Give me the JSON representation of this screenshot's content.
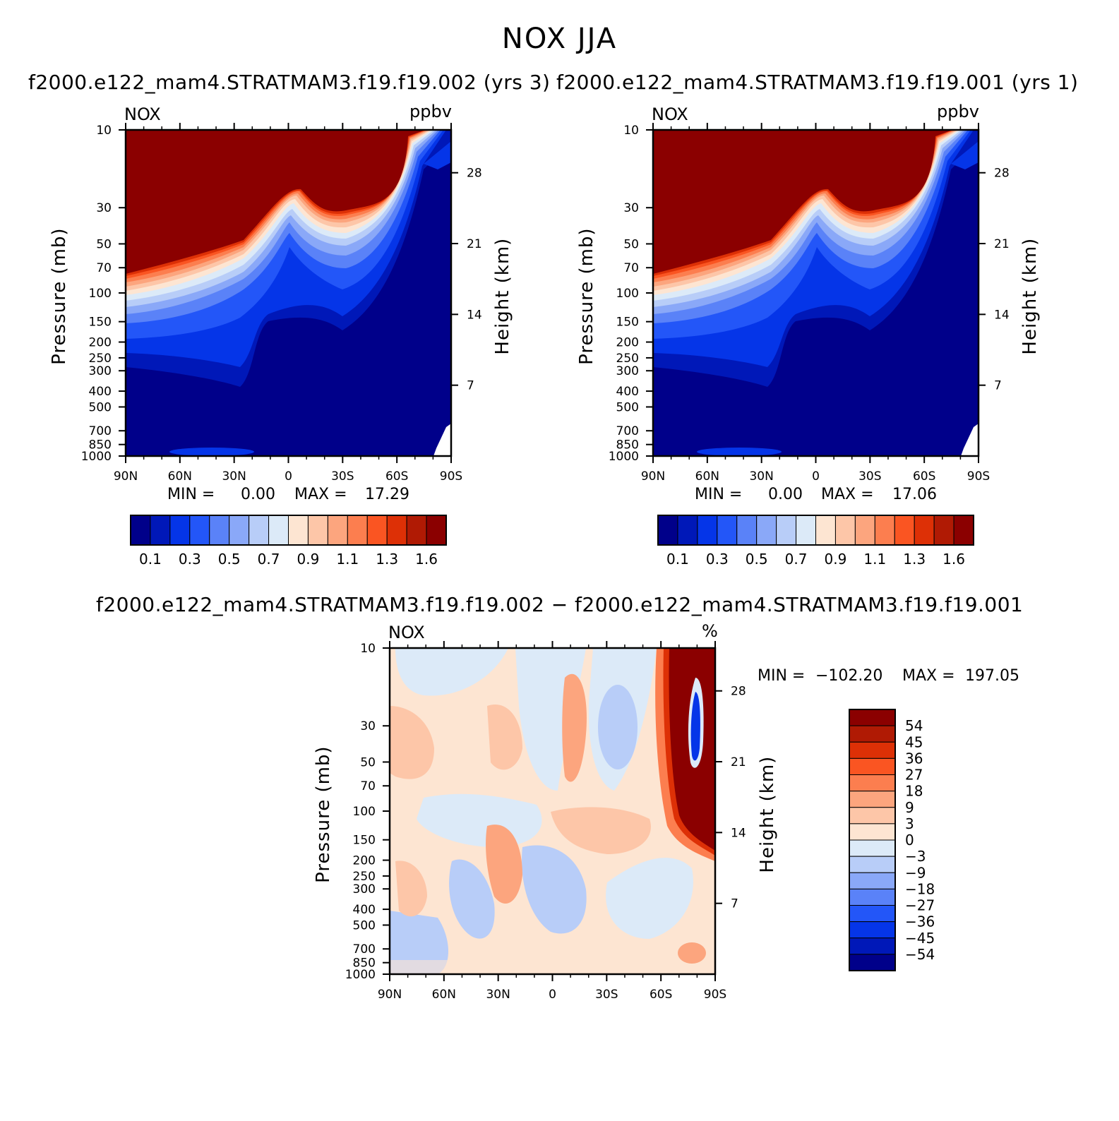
{
  "title": "NOX JJA",
  "chart_data": [
    {
      "type": "contour",
      "id": "left",
      "title": "f2000.e122_mam4.STRATMAM3.f19.f19.002 (yrs 3)",
      "variable": "NOX",
      "units": "ppbv",
      "xlabel": "",
      "ylabel": "Pressure (mb)",
      "ylabel_right": "Height (km)",
      "x_ticks": [
        "90N",
        "60N",
        "30N",
        "0",
        "30S",
        "60S",
        "90S"
      ],
      "xlim": [
        90,
        -90
      ],
      "y_ticks": [
        10,
        30,
        50,
        70,
        100,
        150,
        200,
        250,
        300,
        400,
        500,
        700,
        850,
        1000
      ],
      "ylim": [
        1000,
        10
      ],
      "y_right_ticks": [
        28,
        21,
        14,
        7
      ],
      "min_label": "MIN =",
      "min_value": "0.00",
      "max_label": "MAX =",
      "max_value": "17.29",
      "colorbar": {
        "orientation": "horizontal",
        "labels": [
          "0.1",
          "0.3",
          "0.5",
          "0.7",
          "0.9",
          "1.1",
          "1.3",
          "1.6"
        ],
        "colors": [
          "#00008a",
          "#0018b8",
          "#0535e8",
          "#2356f8",
          "#5a82f8",
          "#8aa8f8",
          "#b8cdf8",
          "#dceaf8",
          "#fde5d2",
          "#fdc6a8",
          "#fca57e",
          "#fc7e4f",
          "#fa5522",
          "#dd3006",
          "#b01a04",
          "#8b0000"
        ]
      }
    },
    {
      "type": "contour",
      "id": "right",
      "title": "f2000.e122_mam4.STRATMAM3.f19.f19.001 (yrs 1)",
      "variable": "NOX",
      "units": "ppbv",
      "xlabel": "",
      "ylabel": "Pressure (mb)",
      "ylabel_right": "Height (km)",
      "x_ticks": [
        "90N",
        "60N",
        "30N",
        "0",
        "30S",
        "60S",
        "90S"
      ],
      "xlim": [
        90,
        -90
      ],
      "y_ticks": [
        10,
        30,
        50,
        70,
        100,
        150,
        200,
        250,
        300,
        400,
        500,
        700,
        850,
        1000
      ],
      "ylim": [
        1000,
        10
      ],
      "y_right_ticks": [
        28,
        21,
        14,
        7
      ],
      "min_label": "MIN =",
      "min_value": "0.00",
      "max_label": "MAX =",
      "max_value": "17.06",
      "colorbar": {
        "orientation": "horizontal",
        "labels": [
          "0.1",
          "0.3",
          "0.5",
          "0.7",
          "0.9",
          "1.1",
          "1.3",
          "1.6"
        ],
        "colors": [
          "#00008a",
          "#0018b8",
          "#0535e8",
          "#2356f8",
          "#5a82f8",
          "#8aa8f8",
          "#b8cdf8",
          "#dceaf8",
          "#fde5d2",
          "#fdc6a8",
          "#fca57e",
          "#fc7e4f",
          "#fa5522",
          "#dd3006",
          "#b01a04",
          "#8b0000"
        ]
      }
    },
    {
      "type": "contour",
      "id": "diff",
      "title": "f2000.e122_mam4.STRATMAM3.f19.f19.002 − f2000.e122_mam4.STRATMAM3.f19.f19.001",
      "variable": "NOX",
      "units": "%",
      "xlabel": "",
      "ylabel": "Pressure (mb)",
      "ylabel_right": "Height (km)",
      "x_ticks": [
        "90N",
        "60N",
        "30N",
        "0",
        "30S",
        "60S",
        "90S"
      ],
      "xlim": [
        90,
        -90
      ],
      "y_ticks": [
        10,
        30,
        50,
        70,
        100,
        150,
        200,
        250,
        300,
        400,
        500,
        700,
        850,
        1000
      ],
      "ylim": [
        1000,
        10
      ],
      "y_right_ticks": [
        28,
        21,
        14,
        7
      ],
      "min_label": "MIN =",
      "min_value": "−102.20",
      "max_label": "MAX =",
      "max_value": "197.05",
      "colorbar": {
        "orientation": "vertical",
        "labels": [
          "54",
          "45",
          "36",
          "27",
          "18",
          "9",
          "3",
          "0",
          "−3",
          "−9",
          "−18",
          "−27",
          "−36",
          "−45",
          "−54"
        ],
        "colors": [
          "#8b0000",
          "#b01a04",
          "#dd3006",
          "#fa5522",
          "#fc7e4f",
          "#fca57e",
          "#fdc6a8",
          "#fde5d2",
          "#dceaf8",
          "#b8cdf8",
          "#8aa8f8",
          "#5a82f8",
          "#2356f8",
          "#0535e8",
          "#0018b8",
          "#00008a"
        ]
      }
    }
  ]
}
